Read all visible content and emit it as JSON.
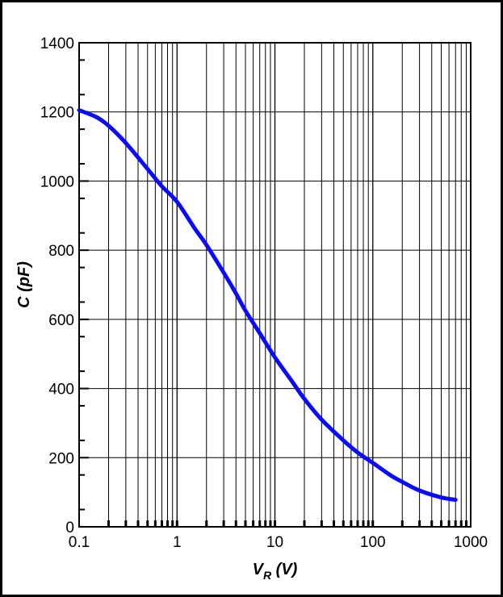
{
  "chart_data": {
    "type": "line",
    "title": "",
    "xlabel_main": "V",
    "xlabel_sub": "R",
    "xlabel_unit": " (V)",
    "ylabel": "C (pF)",
    "xscale": "log",
    "xlim": [
      0.1,
      1000
    ],
    "ylim": [
      0,
      1400
    ],
    "grid": true,
    "x_ticks": [
      {
        "value": 0.1,
        "label": "0.1"
      },
      {
        "value": 1,
        "label": "1"
      },
      {
        "value": 10,
        "label": "10"
      },
      {
        "value": 100,
        "label": "100"
      },
      {
        "value": 1000,
        "label": "1000"
      }
    ],
    "y_ticks": [
      {
        "value": 0,
        "label": "0"
      },
      {
        "value": 200,
        "label": "200"
      },
      {
        "value": 400,
        "label": "400"
      },
      {
        "value": 600,
        "label": "600"
      },
      {
        "value": 800,
        "label": "800"
      },
      {
        "value": 1000,
        "label": "1000"
      },
      {
        "value": 1200,
        "label": "1200"
      },
      {
        "value": 1400,
        "label": "1400"
      }
    ],
    "series": [
      {
        "color": "#0a0aff",
        "x": [
          0.1,
          0.15,
          0.2,
          0.3,
          0.5,
          0.7,
          1,
          1.5,
          2,
          3,
          4,
          5,
          7,
          10,
          15,
          20,
          30,
          50,
          70,
          100,
          150,
          200,
          300,
          500,
          700
        ],
        "y": [
          1205,
          1185,
          1160,
          1110,
          1035,
          985,
          940,
          865,
          815,
          735,
          675,
          625,
          560,
          490,
          420,
          370,
          310,
          250,
          215,
          185,
          150,
          130,
          105,
          85,
          78
        ]
      }
    ]
  }
}
